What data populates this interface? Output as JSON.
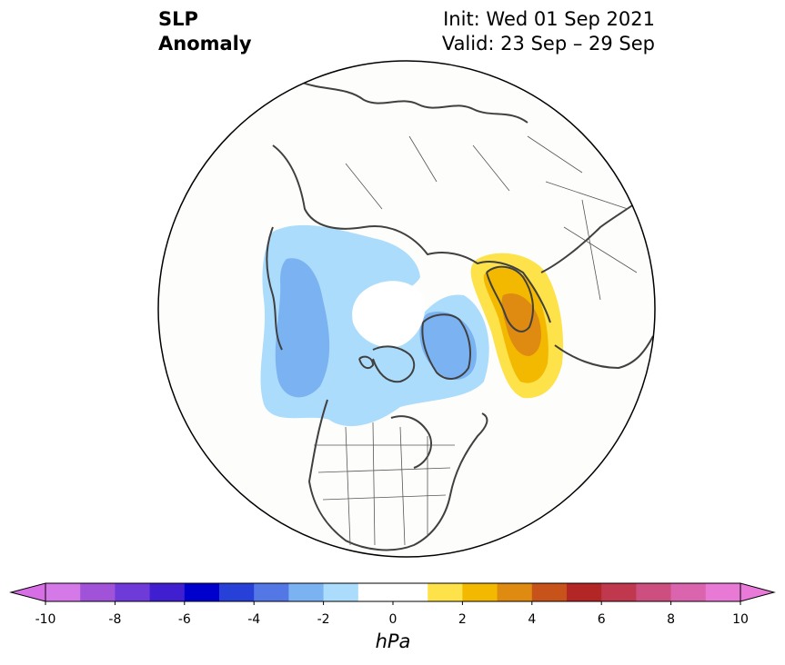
{
  "title": {
    "left_line1": "SLP",
    "left_line2": "Anomaly",
    "right_line1": "Init: Wed 01 Sep 2021",
    "right_line2": "Valid: 23 Sep – 29 Sep"
  },
  "map": {
    "projection": "north-polar-stereographic",
    "field": "sea level pressure anomaly",
    "features": [
      {
        "name": "negative anomaly, North Pacific / Alaska",
        "min_hPa": -3
      },
      {
        "name": "negative anomaly, Greenland / Baffin Bay",
        "min_hPa": -3
      },
      {
        "name": "positive anomaly, Scandinavia / Barents Sea",
        "max_hPa": 4
      }
    ]
  },
  "colorbar": {
    "unit": "hPa",
    "min": -10,
    "max": 10,
    "step": 1,
    "extend": "both",
    "tick_labels": [
      "-10",
      "-8",
      "-6",
      "-4",
      "-2",
      "0",
      "2",
      "4",
      "6",
      "8",
      "10"
    ],
    "colors": [
      "#d679e8",
      "#a052d8",
      "#6f3bd8",
      "#3f1fd0",
      "#0000cc",
      "#2741d8",
      "#5378e6",
      "#7bb2f2",
      "#acdcfb",
      "#ffffff",
      "#ffffff",
      "#fde24a",
      "#f3b800",
      "#df8a10",
      "#c7531a",
      "#b22626",
      "#c0384d",
      "#cc4f80",
      "#da64ae",
      "#e87ad6"
    ],
    "extend_low_color": "#d86ee6",
    "extend_high_color": "#e97ad9"
  }
}
